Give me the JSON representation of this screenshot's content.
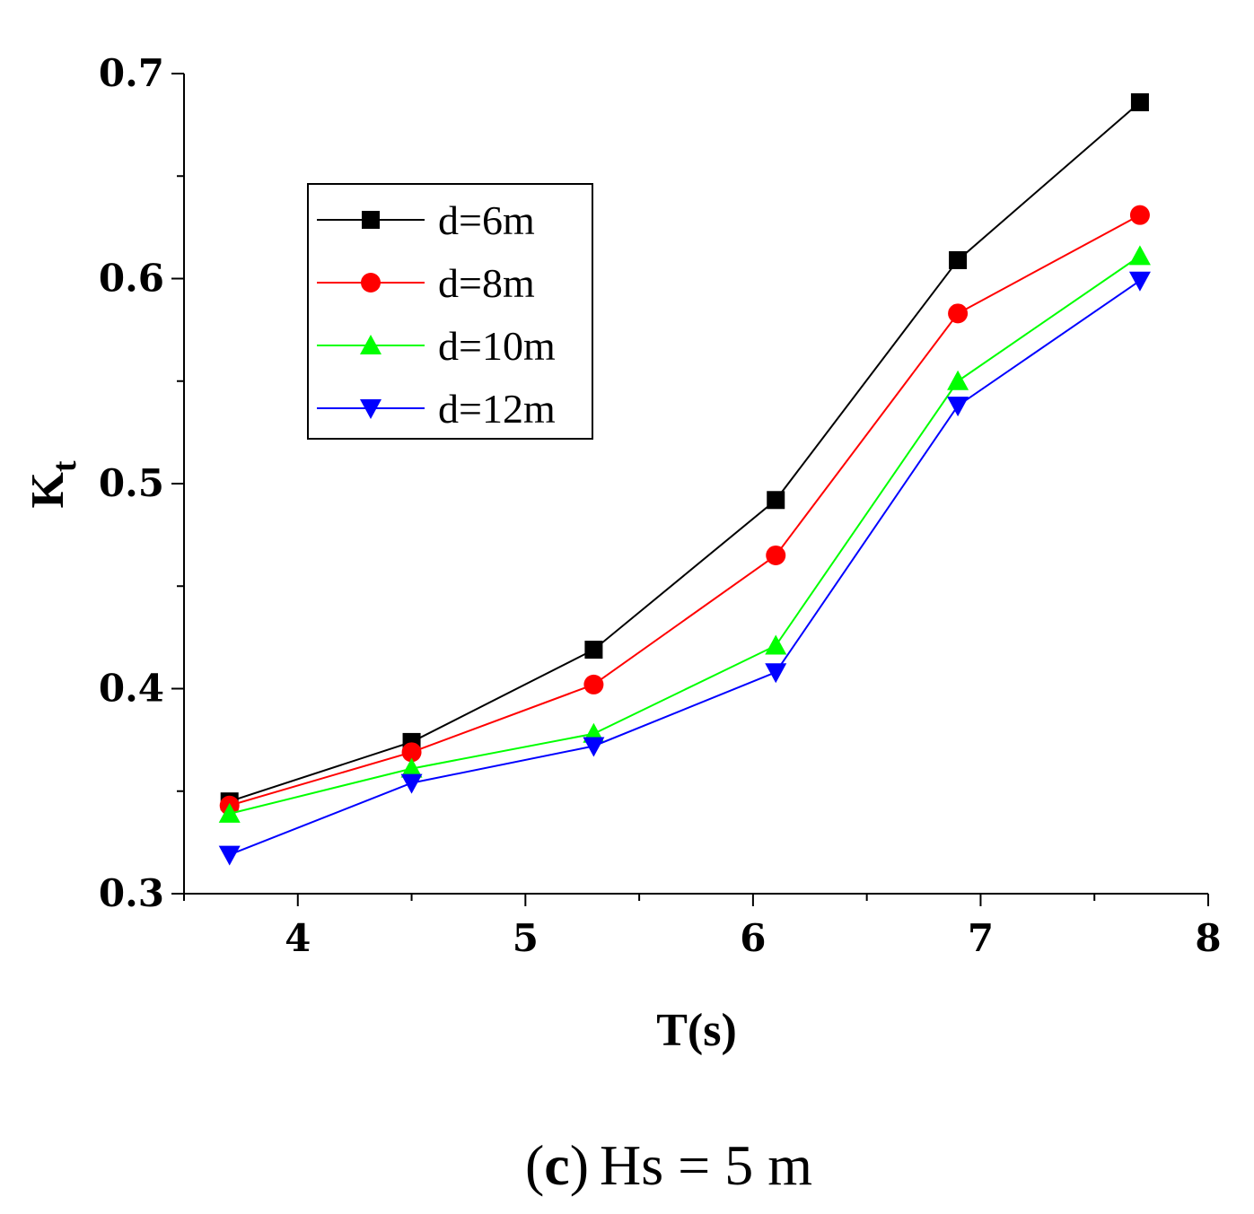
{
  "chart_data": {
    "type": "line",
    "xlabel": "T(s)",
    "ylabel_main": "K",
    "ylabel_sub": "t",
    "xlim": [
      3.5,
      8
    ],
    "ylim": [
      0.3,
      0.7
    ],
    "xticks": [
      4,
      5,
      6,
      7,
      8
    ],
    "xtick_labels": [
      "4",
      "5",
      "6",
      "7",
      "8"
    ],
    "yticks": [
      0.3,
      0.4,
      0.5,
      0.6,
      0.7
    ],
    "ytick_labels": [
      "0.3",
      "0.4",
      "0.5",
      "0.6",
      "0.7"
    ],
    "x": [
      3.7,
      4.5,
      5.3,
      6.1,
      6.9,
      7.7
    ],
    "legend_position": "upper-left",
    "series": [
      {
        "name": "d=6m",
        "color": "#000000",
        "marker": "square",
        "values": [
          0.345,
          0.374,
          0.419,
          0.492,
          0.609,
          0.686
        ]
      },
      {
        "name": "d=8m",
        "color": "#ff0000",
        "marker": "circle",
        "values": [
          0.343,
          0.369,
          0.402,
          0.465,
          0.583,
          0.631
        ]
      },
      {
        "name": "d=10m",
        "color": "#00ff00",
        "marker": "triangle-up",
        "values": [
          0.339,
          0.361,
          0.378,
          0.421,
          0.55,
          0.611
        ]
      },
      {
        "name": "d=12m",
        "color": "#0000ff",
        "marker": "triangle-down",
        "values": [
          0.319,
          0.354,
          0.372,
          0.408,
          0.538,
          0.599
        ]
      }
    ]
  },
  "caption": {
    "open_paren": "(",
    "letter": "c",
    "close_paren": ")",
    "text": "Hs = 5 m"
  }
}
